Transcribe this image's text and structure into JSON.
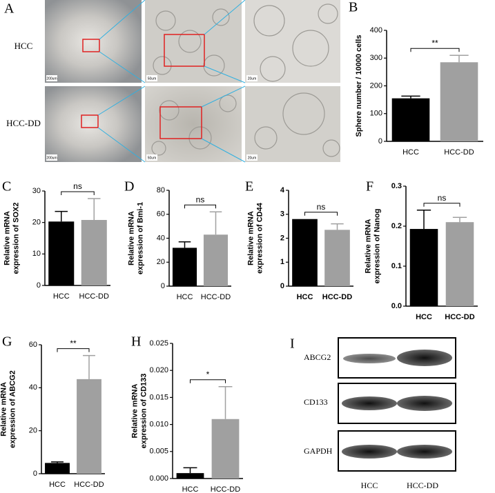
{
  "panel_a": {
    "letter": "A",
    "rows": [
      "HCC",
      "HCC-DD"
    ],
    "scale_bars": [
      "200um",
      "50um",
      "20um"
    ]
  },
  "chart_data": [
    {
      "type": "bar",
      "letter": "B",
      "y_label": [
        "Sphere number / 10000 cells"
      ],
      "categories": [
        "HCC",
        "HCC-DD"
      ],
      "values": [
        155,
        285
      ],
      "errors": [
        8,
        25
      ],
      "colors": [
        "#000000",
        "#a0a0a0"
      ],
      "ylim": [
        0,
        400
      ],
      "yticks": [
        0,
        100,
        200,
        300,
        400
      ],
      "significance": "**",
      "bold_labels": false
    },
    {
      "type": "bar",
      "letter": "C",
      "y_label": [
        "Relative mRNA",
        "expression of SOX2"
      ],
      "categories": [
        "HCC",
        "HCC-DD"
      ],
      "values": [
        20.3,
        20.8
      ],
      "errors": [
        3.2,
        6.8
      ],
      "colors": [
        "#000000",
        "#a0a0a0"
      ],
      "ylim": [
        0,
        30
      ],
      "yticks": [
        0,
        10,
        20,
        30
      ],
      "significance": "ns",
      "bold_labels": false
    },
    {
      "type": "bar",
      "letter": "D",
      "y_label": [
        "Relative mRNA",
        "expression of Bmi-1"
      ],
      "categories": [
        "HCC",
        "HCC-DD"
      ],
      "values": [
        32,
        43
      ],
      "errors": [
        5,
        19
      ],
      "colors": [
        "#000000",
        "#a0a0a0"
      ],
      "ylim": [
        0,
        80
      ],
      "yticks": [
        0,
        20,
        40,
        60,
        80
      ],
      "significance": "ns",
      "bold_labels": false
    },
    {
      "type": "bar",
      "letter": "E",
      "y_label": [
        "Relative mRNA",
        "expression of CD44"
      ],
      "categories": [
        "HCC",
        "HCC-DD"
      ],
      "values": [
        2.8,
        2.35
      ],
      "errors": [
        null,
        0.25
      ],
      "colors": [
        "#000000",
        "#a0a0a0"
      ],
      "ylim": [
        0,
        4
      ],
      "yticks": [
        0,
        1,
        2,
        3,
        4
      ],
      "significance": "ns",
      "bold_labels": true
    },
    {
      "type": "bar",
      "letter": "F",
      "y_label": [
        "Relative mRNA",
        "expression of Nanog"
      ],
      "categories": [
        "HCC",
        "HCC-DD"
      ],
      "values": [
        0.193,
        0.21
      ],
      "errors": [
        0.047,
        0.012
      ],
      "colors": [
        "#000000",
        "#a0a0a0"
      ],
      "ylim": [
        0,
        0.3
      ],
      "yticks": [
        {
          "value": 0,
          "label": "0.0"
        },
        0.1,
        0.2,
        0.3
      ],
      "significance": "ns",
      "bold_labels": true
    },
    {
      "type": "bar",
      "letter": "G",
      "y_label": [
        "Relative mRNA",
        "expression of ABCG2"
      ],
      "categories": [
        "HCC",
        "HCC-DD"
      ],
      "values": [
        5,
        44
      ],
      "errors": [
        0.5,
        11
      ],
      "colors": [
        "#000000",
        "#a0a0a0"
      ],
      "ylim": [
        0,
        60
      ],
      "yticks": [
        0,
        20,
        40,
        60
      ],
      "significance": "**",
      "bold_labels": false
    },
    {
      "type": "bar",
      "letter": "H",
      "y_label": [
        "Relative mRNA",
        "expression of CD133"
      ],
      "categories": [
        "HCC",
        "HCC-DD"
      ],
      "values": [
        0.001,
        0.011
      ],
      "errors": [
        0.001,
        0.006
      ],
      "colors": [
        "#000000",
        "#a0a0a0"
      ],
      "ylim": [
        0,
        0.025
      ],
      "yticks": [
        {
          "value": 0,
          "label": "0.000"
        },
        {
          "value": 0.005,
          "label": "0.005"
        },
        {
          "value": 0.01,
          "label": "0.010"
        },
        {
          "value": 0.015,
          "label": "0.015"
        },
        {
          "value": 0.02,
          "label": "0.020"
        },
        {
          "value": 0.025,
          "label": "0.025"
        }
      ],
      "significance": "*",
      "bold_labels": false
    }
  ],
  "panel_i": {
    "letter": "I",
    "bands": [
      "ABCG2",
      "CD133",
      "GAPDH"
    ],
    "lanes": [
      "HCC",
      "HCC-DD"
    ]
  }
}
